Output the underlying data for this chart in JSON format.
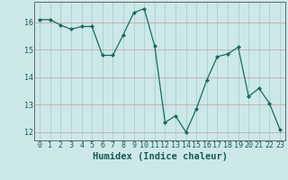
{
  "x": [
    0,
    1,
    2,
    3,
    4,
    5,
    6,
    7,
    8,
    9,
    10,
    11,
    12,
    13,
    14,
    15,
    16,
    17,
    18,
    19,
    20,
    21,
    22,
    23
  ],
  "y": [
    16.1,
    16.1,
    15.9,
    15.75,
    15.85,
    15.85,
    14.8,
    14.8,
    15.55,
    16.35,
    16.5,
    15.15,
    12.35,
    12.6,
    12.0,
    12.85,
    13.9,
    14.75,
    14.85,
    15.1,
    13.3,
    13.6,
    13.05,
    12.1
  ],
  "xlabel": "Humidex (Indice chaleur)",
  "xlim": [
    -0.5,
    23.5
  ],
  "ylim": [
    11.7,
    16.75
  ],
  "yticks": [
    12,
    13,
    14,
    15,
    16
  ],
  "xticks": [
    0,
    1,
    2,
    3,
    4,
    5,
    6,
    7,
    8,
    9,
    10,
    11,
    12,
    13,
    14,
    15,
    16,
    17,
    18,
    19,
    20,
    21,
    22,
    23
  ],
  "line_color": "#1a6b5e",
  "marker": "D",
  "marker_size": 2.0,
  "bg_color": "#cce8e8",
  "grid_major_color": "#aacfcf",
  "grid_minor_color": "#bbdada",
  "axis_color": "#666666",
  "font_color": "#1a5a5a",
  "xlabel_fontsize": 7.5,
  "tick_fontsize": 6.0
}
